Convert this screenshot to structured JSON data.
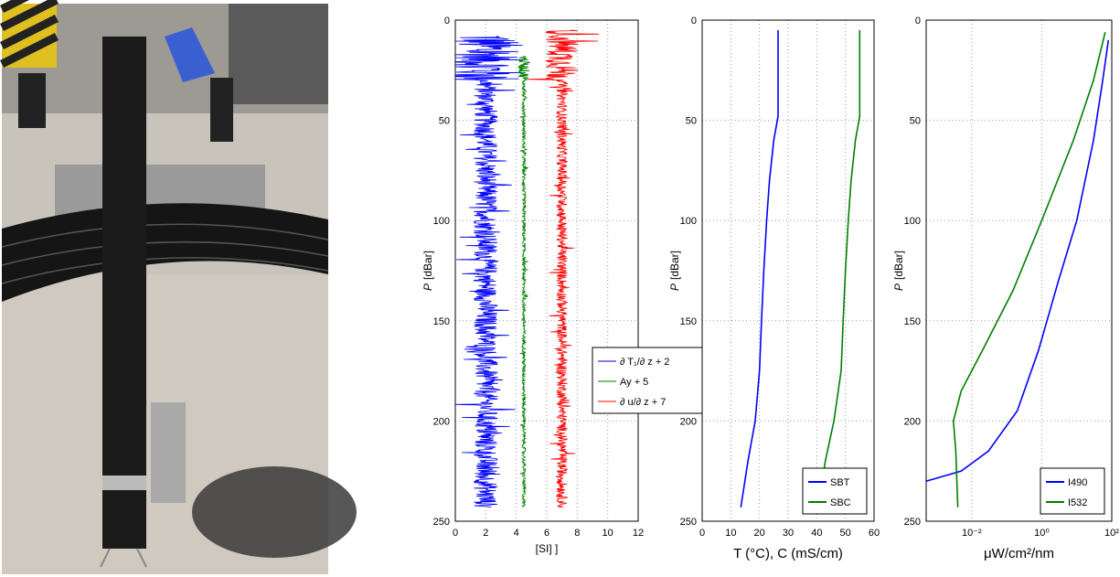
{
  "chart_data": [
    {
      "type": "line",
      "ylabel_italic": "P",
      "ylabel_units": "[dBar]",
      "xlabel": "[SI] ]",
      "xlim": [
        0,
        12
      ],
      "ylim": [
        0,
        250
      ],
      "xticks": [
        "0",
        "2",
        "4",
        "6",
        "8",
        "10",
        "12"
      ],
      "yticks": [
        "0",
        "50",
        "100",
        "150",
        "200",
        "250"
      ],
      "grid": true,
      "legend_position": "lower-right",
      "series": [
        {
          "name": "∂ T₁/∂ z + 2",
          "color": "#0000ff",
          "center": 2.0,
          "noise": 0.8,
          "y_start": 8,
          "y_end": 243
        },
        {
          "name": "Ay + 5",
          "color": "#007f00",
          "center": 4.5,
          "noise": 0.12,
          "y_start": 18,
          "y_end": 243
        },
        {
          "name": "∂ u/∂ z + 7",
          "color": "#ff0000",
          "center": 7.0,
          "noise": 0.35,
          "y_start": 5,
          "y_end": 243
        }
      ]
    },
    {
      "type": "line",
      "ylabel_italic": "P",
      "ylabel_units": "[dBar]",
      "xlabel": "T (°C), C (mS/cm)",
      "xlim": [
        0,
        60
      ],
      "ylim": [
        0,
        250
      ],
      "xticks": [
        "0",
        "10",
        "20",
        "30",
        "40",
        "50",
        "60"
      ],
      "yticks": [
        "0",
        "50",
        "100",
        "150",
        "200",
        "250"
      ],
      "grid": true,
      "legend_position": "lower-right",
      "series": [
        {
          "name": "SBT",
          "color": "#0000ff",
          "points": [
            [
              26.5,
              5
            ],
            [
              26.5,
              48
            ],
            [
              25,
              60
            ],
            [
              23.5,
              80
            ],
            [
              22.5,
              100
            ],
            [
              21.5,
              125
            ],
            [
              20.7,
              150
            ],
            [
              20,
              175
            ],
            [
              18.5,
              200
            ],
            [
              16,
              220
            ],
            [
              13.5,
              243
            ]
          ]
        },
        {
          "name": "SBC",
          "color": "#007f00",
          "points": [
            [
              55,
              5
            ],
            [
              55,
              48
            ],
            [
              53.5,
              60
            ],
            [
              52,
              80
            ],
            [
              51,
              100
            ],
            [
              50,
              125
            ],
            [
              49.2,
              150
            ],
            [
              48.5,
              175
            ],
            [
              46,
              200
            ],
            [
              43,
              220
            ],
            [
              40.5,
              243
            ]
          ]
        }
      ]
    },
    {
      "type": "line",
      "x_scale": "log",
      "ylabel_italic": "P",
      "ylabel_units": "[dBar]",
      "xlabel": "μW/cm²/nm",
      "xlim": [
        0.0005,
        100
      ],
      "ylim": [
        0,
        250
      ],
      "xticks": [
        "10⁻²",
        "10⁰",
        "10²"
      ],
      "yticks": [
        "0",
        "50",
        "100",
        "150",
        "200",
        "250"
      ],
      "grid": true,
      "legend_position": "lower-right",
      "series": [
        {
          "name": "I490",
          "color": "#0000ff",
          "points": [
            [
              80,
              10
            ],
            [
              55,
              30
            ],
            [
              30,
              60
            ],
            [
              10,
              100
            ],
            [
              3,
              130
            ],
            [
              0.8,
              165
            ],
            [
              0.2,
              195
            ],
            [
              0.03,
              215
            ],
            [
              0.005,
              225
            ],
            [
              0.0008,
              229
            ],
            [
              0.0005,
              230
            ]
          ]
        },
        {
          "name": "I532",
          "color": "#007f00",
          "points": [
            [
              65,
              6
            ],
            [
              30,
              30
            ],
            [
              8,
              60
            ],
            [
              1,
              100
            ],
            [
              0.15,
              135
            ],
            [
              0.02,
              165
            ],
            [
              0.005,
              185
            ],
            [
              0.003,
              200
            ],
            [
              0.0035,
              215
            ],
            [
              0.004,
              243
            ]
          ]
        }
      ]
    }
  ]
}
